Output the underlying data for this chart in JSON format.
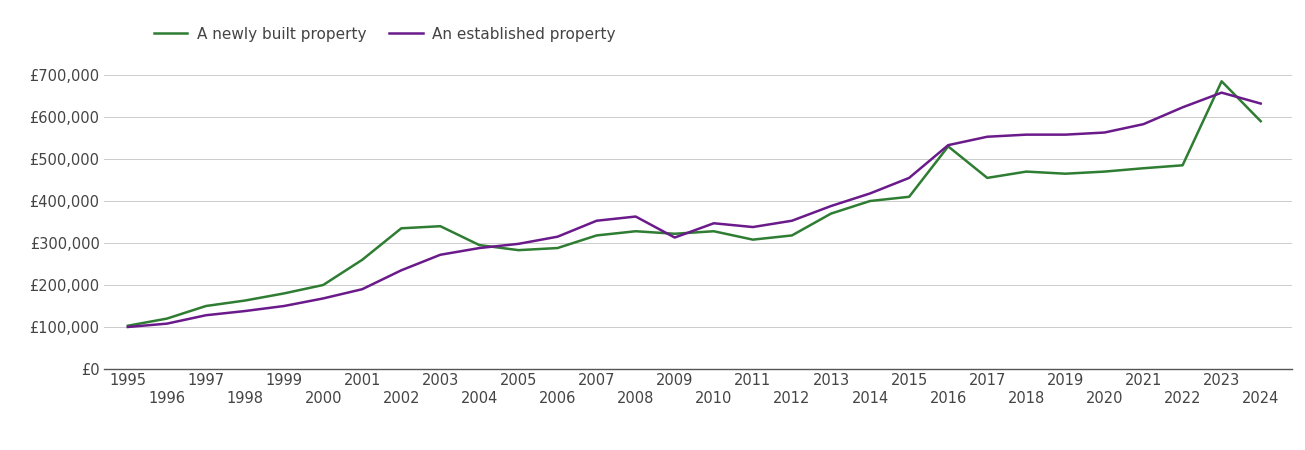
{
  "new_years": [
    1995,
    1996,
    1997,
    1998,
    1999,
    2000,
    2001,
    2002,
    2003,
    2004,
    2005,
    2006,
    2007,
    2008,
    2009,
    2010,
    2011,
    2012,
    2013,
    2014,
    2015,
    2016,
    2017,
    2018,
    2019,
    2020,
    2021,
    2022,
    2023,
    2024
  ],
  "new_values": [
    103000,
    120000,
    150000,
    163000,
    180000,
    200000,
    260000,
    335000,
    340000,
    295000,
    283000,
    288000,
    318000,
    328000,
    322000,
    328000,
    308000,
    318000,
    370000,
    400000,
    410000,
    530000,
    455000,
    470000,
    465000,
    470000,
    478000,
    485000,
    685000,
    590000
  ],
  "est_years": [
    1995,
    1996,
    1997,
    1998,
    1999,
    2000,
    2001,
    2002,
    2003,
    2004,
    2005,
    2006,
    2007,
    2008,
    2009,
    2010,
    2011,
    2012,
    2013,
    2014,
    2015,
    2016,
    2017,
    2018,
    2019,
    2020,
    2021,
    2022,
    2023,
    2024
  ],
  "est_values": [
    100000,
    108000,
    128000,
    138000,
    150000,
    168000,
    190000,
    235000,
    272000,
    288000,
    298000,
    315000,
    353000,
    363000,
    313000,
    347000,
    338000,
    353000,
    388000,
    418000,
    455000,
    533000,
    553000,
    558000,
    558000,
    563000,
    583000,
    623000,
    658000,
    632000
  ],
  "new_color": "#2e7d32",
  "est_color": "#6a1a8a",
  "legend_new": "A newly built property",
  "legend_est": "An established property",
  "ylim": [
    0,
    750000
  ],
  "yticks": [
    0,
    100000,
    200000,
    300000,
    400000,
    500000,
    600000,
    700000
  ],
  "ytick_labels": [
    "£0",
    "£100,000",
    "£200,000",
    "£300,000",
    "£400,000",
    "£500,000",
    "£600,000",
    "£700,000"
  ],
  "xticks_odd": [
    1995,
    1997,
    1999,
    2001,
    2003,
    2005,
    2007,
    2009,
    2011,
    2013,
    2015,
    2017,
    2019,
    2021,
    2023
  ],
  "xticks_even": [
    1996,
    1998,
    2000,
    2002,
    2004,
    2006,
    2008,
    2010,
    2012,
    2014,
    2016,
    2018,
    2020,
    2022,
    2024
  ],
  "xlim_left": 1994.4,
  "xlim_right": 2024.8,
  "bg_color": "#ffffff",
  "grid_color": "#cccccc",
  "line_width": 1.8,
  "font_color": "#444444",
  "font_size": 10.5
}
